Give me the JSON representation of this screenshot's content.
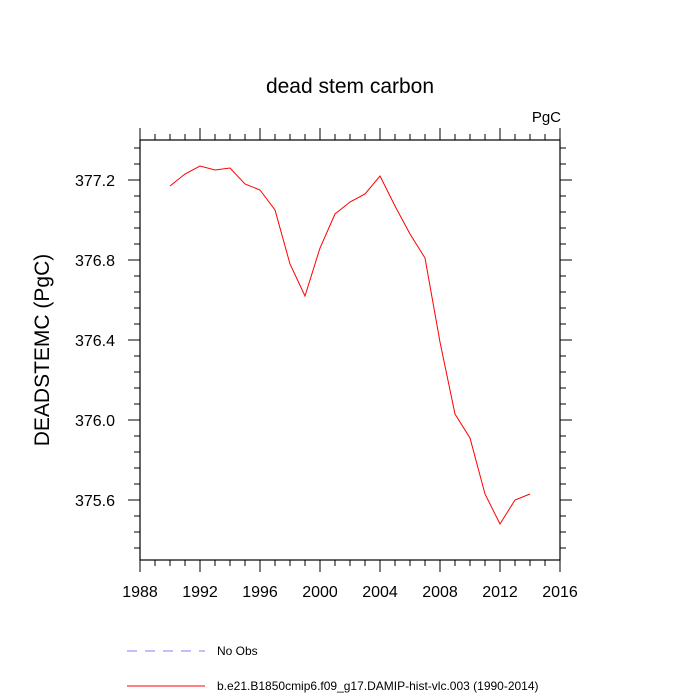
{
  "chart_data": {
    "type": "line",
    "title": "dead stem carbon",
    "units_label": "PgC",
    "xlabel": "",
    "ylabel": "DEADSTEMC  (PgC)",
    "xlim": [
      1988,
      2016
    ],
    "ylim": [
      375.3,
      377.4
    ],
    "x_ticks": [
      1988,
      1992,
      1996,
      2000,
      2004,
      2008,
      2012,
      2016
    ],
    "x_tick_labels": [
      "1988",
      "1992",
      "1996",
      "2000",
      "2004",
      "2008",
      "2012",
      "2016"
    ],
    "y_ticks": [
      375.6,
      376.0,
      376.4,
      376.8,
      377.2
    ],
    "y_tick_labels": [
      "375.6",
      "376.0",
      "376.4",
      "376.8",
      "377.2"
    ],
    "grid": false,
    "series": [
      {
        "name": "b.e21.B1850cmip6.f09_g17.DAMIP-hist-vlc.003 (1990-2014)",
        "color": "#ff0000",
        "style": "solid",
        "x": [
          1990,
          1991,
          1992,
          1993,
          1994,
          1995,
          1996,
          1997,
          1998,
          1999,
          2000,
          2001,
          2002,
          2003,
          2004,
          2005,
          2006,
          2007,
          2008,
          2009,
          2010,
          2011,
          2012,
          2013,
          2014
        ],
        "y": [
          377.17,
          377.23,
          377.27,
          377.25,
          377.26,
          377.18,
          377.15,
          377.05,
          376.78,
          376.62,
          376.86,
          377.03,
          377.09,
          377.13,
          377.22,
          377.07,
          376.93,
          376.81,
          376.39,
          376.03,
          375.91,
          375.63,
          375.48,
          375.6,
          375.63
        ]
      }
    ],
    "legend": [
      {
        "label": "No Obs",
        "color": "#8080ff",
        "style": "dashed"
      },
      {
        "label": "b.e21.B1850cmip6.f09_g17.DAMIP-hist-vlc.003 (1990-2014)",
        "color": "#ff0000",
        "style": "solid"
      }
    ],
    "legend_position": "bottom"
  }
}
